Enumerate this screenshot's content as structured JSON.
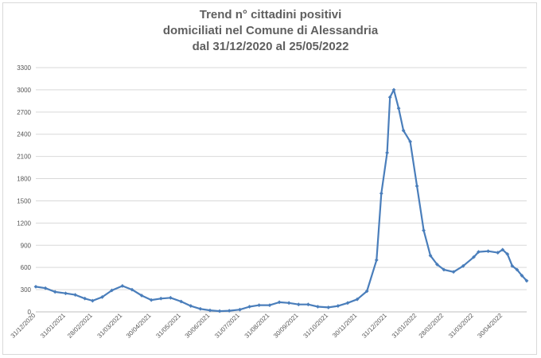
{
  "chart_data": {
    "type": "line",
    "title": [
      "Trend n° cittadini positivi",
      "domiciliati nel Comune di Alessandria",
      "dal 31/12/2020 al 25/05/2022"
    ],
    "xlabel": "",
    "ylabel": "",
    "ylim": [
      0,
      3300
    ],
    "yticks": [
      "0",
      "300",
      "600",
      "900",
      "1200",
      "1500",
      "1800",
      "2100",
      "2400",
      "2700",
      "3000",
      "3300"
    ],
    "xlim": [
      "31/12/2020",
      "25/05/2022"
    ],
    "xticks": [
      "31/12/2020",
      "31/01/2021",
      "28/02/2021",
      "31/03/2021",
      "30/04/2021",
      "31/05/2021",
      "30/06/2021",
      "31/07/2021",
      "31/08/2021",
      "30/09/2021",
      "31/10/2021",
      "30/11/2021",
      "31/12/2021",
      "31/01/2022",
      "28/02/2022",
      "31/03/2022",
      "30/04/2022"
    ],
    "grid": true,
    "legend": "none",
    "series_color": "#4a7ebb",
    "series": [
      {
        "points": [
          [
            "31/12/2020",
            340
          ],
          [
            "10/01/2021",
            320
          ],
          [
            "20/01/2021",
            270
          ],
          [
            "31/01/2021",
            250
          ],
          [
            "10/02/2021",
            230
          ],
          [
            "20/02/2021",
            180
          ],
          [
            "28/02/2021",
            150
          ],
          [
            "10/03/2021",
            200
          ],
          [
            "20/03/2021",
            290
          ],
          [
            "31/03/2021",
            350
          ],
          [
            "10/04/2021",
            300
          ],
          [
            "20/04/2021",
            220
          ],
          [
            "30/04/2021",
            160
          ],
          [
            "10/05/2021",
            180
          ],
          [
            "20/05/2021",
            190
          ],
          [
            "31/05/2021",
            140
          ],
          [
            "10/06/2021",
            80
          ],
          [
            "20/06/2021",
            40
          ],
          [
            "30/06/2021",
            20
          ],
          [
            "10/07/2021",
            10
          ],
          [
            "20/07/2021",
            15
          ],
          [
            "31/07/2021",
            30
          ],
          [
            "10/08/2021",
            70
          ],
          [
            "20/08/2021",
            90
          ],
          [
            "31/08/2021",
            90
          ],
          [
            "10/09/2021",
            130
          ],
          [
            "20/09/2021",
            120
          ],
          [
            "30/09/2021",
            100
          ],
          [
            "10/10/2021",
            100
          ],
          [
            "20/10/2021",
            70
          ],
          [
            "31/10/2021",
            60
          ],
          [
            "10/11/2021",
            80
          ],
          [
            "20/11/2021",
            120
          ],
          [
            "30/11/2021",
            170
          ],
          [
            "10/12/2021",
            280
          ],
          [
            "20/12/2021",
            700
          ],
          [
            "25/12/2021",
            1600
          ],
          [
            "31/12/2021",
            2150
          ],
          [
            "03/01/2022",
            2900
          ],
          [
            "07/01/2022",
            3000
          ],
          [
            "12/01/2022",
            2750
          ],
          [
            "17/01/2022",
            2450
          ],
          [
            "24/01/2022",
            2300
          ],
          [
            "31/01/2022",
            1700
          ],
          [
            "07/02/2022",
            1100
          ],
          [
            "14/02/2022",
            760
          ],
          [
            "21/02/2022",
            640
          ],
          [
            "28/02/2022",
            570
          ],
          [
            "10/03/2022",
            540
          ],
          [
            "20/03/2022",
            620
          ],
          [
            "31/03/2022",
            740
          ],
          [
            "05/04/2022",
            810
          ],
          [
            "15/04/2022",
            820
          ],
          [
            "25/04/2022",
            800
          ],
          [
            "30/04/2022",
            840
          ],
          [
            "05/05/2022",
            780
          ],
          [
            "10/05/2022",
            620
          ],
          [
            "15/05/2022",
            570
          ],
          [
            "20/05/2022",
            490
          ],
          [
            "25/05/2022",
            420
          ]
        ]
      }
    ]
  }
}
